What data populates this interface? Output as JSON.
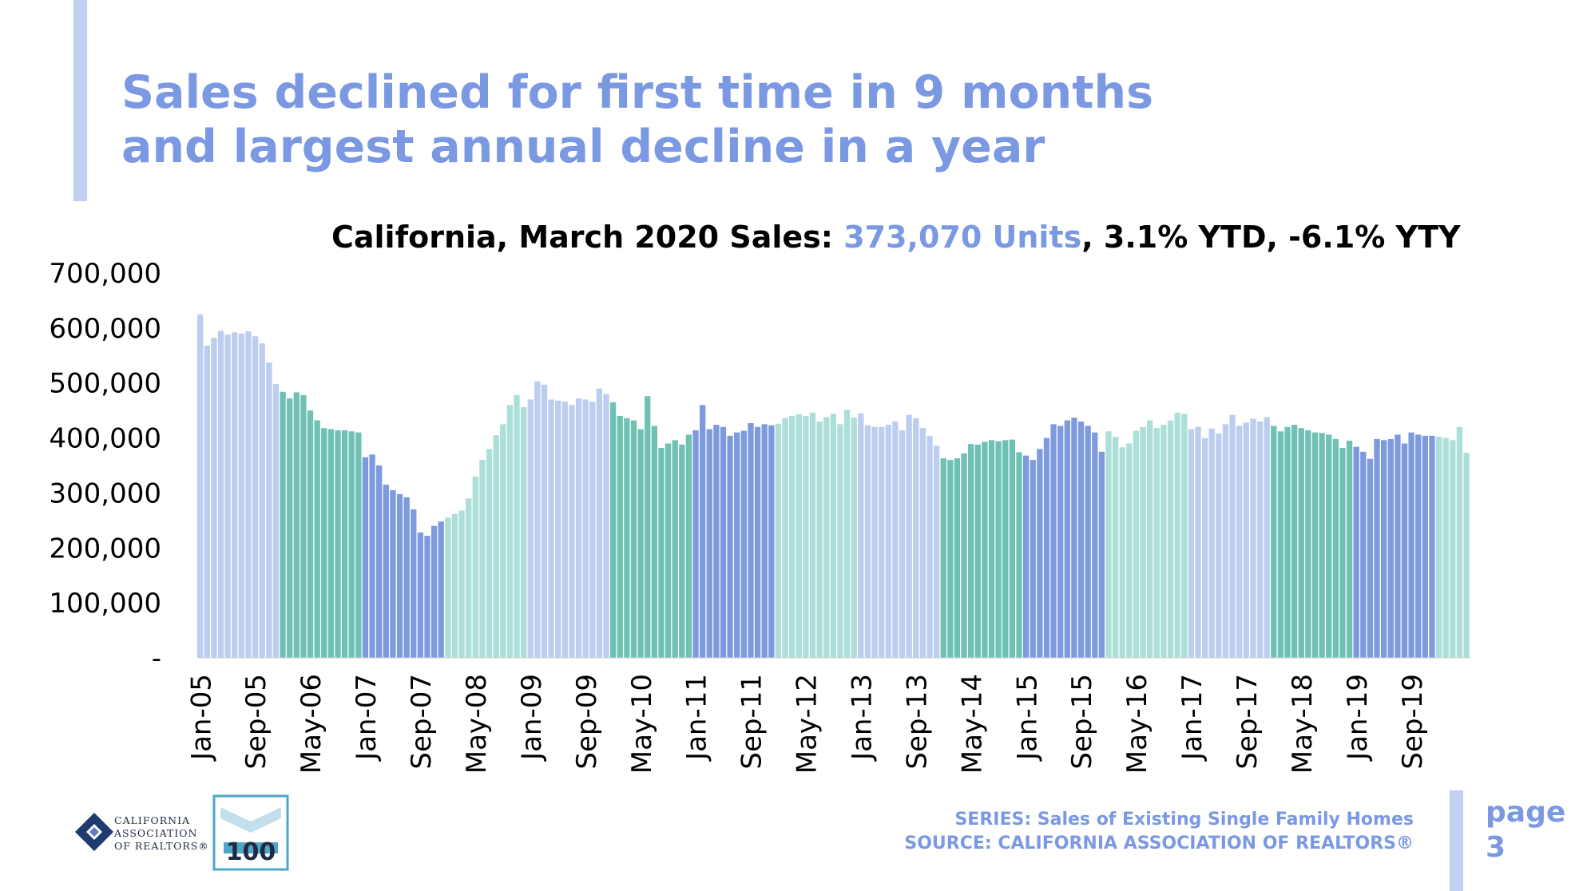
{
  "headline": {
    "line1": "Sales declined for first time in 9 months",
    "line2": "and largest annual decline in a year"
  },
  "chart_title": {
    "prefix": "California, March 2020 Sales: ",
    "highlight": "373,070 Units",
    "suffix": ", 3.1% YTD, -6.1% YTY"
  },
  "colors": {
    "accent": "#7b99e2",
    "accent_bar": "#bfd0f0",
    "year_palette": [
      "#bdcdf0",
      "#6fc1b4",
      "#7e9ade",
      "#abdfd8"
    ]
  },
  "chart_data": {
    "type": "bar",
    "title": "California, March 2020 Sales: 373,070 Units, 3.1% YTD, -6.1% YTY",
    "xlabel": "",
    "ylabel": "",
    "start_month": "Jan-05",
    "end_month": "Mar-20",
    "ylim": [
      0,
      700000
    ],
    "y_ticks": [
      0,
      100000,
      200000,
      300000,
      400000,
      500000,
      600000,
      700000
    ],
    "y_tick_labels": [
      "-",
      "100,000",
      "200,000",
      "300,000",
      "400,000",
      "500,000",
      "600,000",
      "700,000"
    ],
    "x_tick_labels": [
      "Jan-05",
      "Sep-05",
      "May-06",
      "Jan-07",
      "Sep-07",
      "May-08",
      "Jan-09",
      "Sep-09",
      "May-10",
      "Jan-11",
      "Sep-11",
      "May-12",
      "Jan-13",
      "Sep-13",
      "May-14",
      "Jan-15",
      "Sep-15",
      "May-16",
      "Jan-17",
      "Sep-17",
      "May-18",
      "Jan-19",
      "Sep-19"
    ],
    "grid": false,
    "legend": "none",
    "color_by_year": true,
    "values": [
      625000,
      568000,
      582000,
      595000,
      588000,
      592000,
      590000,
      594000,
      585000,
      572000,
      537000,
      498000,
      484000,
      472000,
      483000,
      478000,
      450000,
      432000,
      418000,
      416000,
      414000,
      414000,
      412000,
      410000,
      365000,
      370000,
      350000,
      315000,
      305000,
      298000,
      292000,
      270000,
      228000,
      222000,
      240000,
      248000,
      255000,
      262000,
      268000,
      290000,
      330000,
      360000,
      380000,
      405000,
      425000,
      460000,
      478000,
      456000,
      470000,
      503000,
      497000,
      470000,
      468000,
      466000,
      460000,
      472000,
      470000,
      466000,
      490000,
      480000,
      465000,
      440000,
      436000,
      432000,
      416000,
      476000,
      422000,
      382000,
      390000,
      396000,
      388000,
      406000,
      414000,
      460000,
      416000,
      424000,
      420000,
      404000,
      410000,
      413000,
      427000,
      420000,
      425000,
      423000,
      426000,
      436000,
      440000,
      443000,
      440000,
      446000,
      430000,
      438000,
      444000,
      425000,
      451000,
      437000,
      445000,
      423000,
      420000,
      420000,
      424000,
      430000,
      414000,
      442000,
      436000,
      418000,
      404000,
      386000,
      363000,
      360000,
      363000,
      372000,
      389000,
      388000,
      393000,
      396000,
      394000,
      396000,
      397000,
      374000,
      368000,
      360000,
      380000,
      400000,
      425000,
      422000,
      432000,
      437000,
      430000,
      422000,
      410000,
      375000,
      412000,
      402000,
      383000,
      390000,
      413000,
      420000,
      432000,
      418000,
      424000,
      432000,
      446000,
      444000,
      416000,
      420000,
      400000,
      417000,
      408000,
      425000,
      442000,
      422000,
      428000,
      435000,
      430000,
      438000,
      422000,
      412000,
      420000,
      424000,
      418000,
      414000,
      410000,
      409000,
      406000,
      398000,
      382000,
      395000,
      384000,
      375000,
      362000,
      398000,
      396000,
      398000,
      406000,
      390000,
      410000,
      406000,
      404000,
      404000,
      402000,
      400000,
      396000,
      420000,
      373070
    ]
  },
  "footer": {
    "series": "SERIES: Sales of Existing Single Family Homes",
    "source": "SOURCE: CALIFORNIA ASSOCIATION OF REALTORS®"
  },
  "logo": {
    "line1": "CALIFORNIA",
    "line2": "ASSOCIATION",
    "line3": "OF REALTORS®",
    "badge_number": "100"
  },
  "page": {
    "word": "page",
    "number": "3"
  }
}
